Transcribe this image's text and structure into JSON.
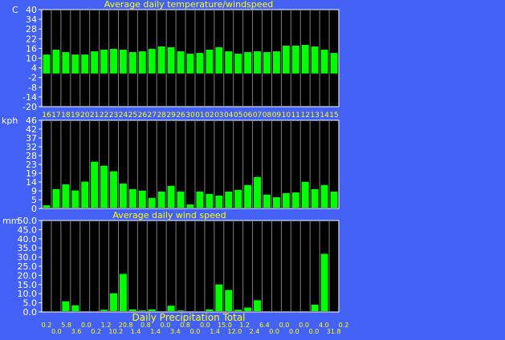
{
  "colors": {
    "background": "#4461f5",
    "plot": "#000000",
    "bar": "#00ff00",
    "grid": "#808080",
    "title": "#ffff00",
    "axis_text": "#ffffff"
  },
  "date_labels": [
    "16",
    "17",
    "18",
    "19",
    "20",
    "21",
    "22",
    "23",
    "24",
    "25",
    "26",
    "27",
    "28",
    "29",
    "26",
    "30",
    "01",
    "02",
    "03",
    "04",
    "05",
    "06",
    "07",
    "08",
    "09",
    "10",
    "11",
    "12",
    "13",
    "14",
    "15"
  ],
  "chart_data": [
    {
      "type": "bar",
      "title": "Average daily temperature/windspeed",
      "unit": "C",
      "ylim": [
        -20,
        40
      ],
      "yticks": [
        "40",
        "34",
        "28",
        "22",
        "16",
        "10",
        "4",
        "-2",
        "-8",
        "-14",
        "-20"
      ],
      "values": [
        12.2,
        15.2,
        13.7,
        12.2,
        12.2,
        14.2,
        15.2,
        15.7,
        15.2,
        13.7,
        14.2,
        15.7,
        17.2,
        16.7,
        14.2,
        12.7,
        13.2,
        15.2,
        16.7,
        14.2,
        12.7,
        13.7,
        14.2,
        13.7,
        14.2,
        17.7,
        17.7,
        18.2,
        17.2,
        15.2,
        13.2
      ]
    },
    {
      "type": "bar",
      "title": "Average daily wind speed",
      "unit": "kph",
      "ylim": [
        0,
        46
      ],
      "yticks": [
        "46",
        "42",
        "37",
        "32",
        "28",
        "23",
        "19",
        "14",
        "9",
        "5",
        "0"
      ],
      "values": [
        1.7,
        10.1,
        12.6,
        9.4,
        14.0,
        24.4,
        22.3,
        19.4,
        13.0,
        10.1,
        9.3,
        5.5,
        8.8,
        11.8,
        8.8,
        2.1,
        8.8,
        7.6,
        6.7,
        8.8,
        9.7,
        12.2,
        16.4,
        7.2,
        5.9,
        8.0,
        8.4,
        13.9,
        10.1,
        12.2,
        8.8
      ]
    },
    {
      "type": "bar",
      "title": "Daily Precipitation Total",
      "unit": "mm",
      "ylim": [
        0,
        50
      ],
      "yticks": [
        "50.0",
        "45.0",
        "40.0",
        "35.0",
        "30.0",
        "25.0",
        "20.0",
        "15.0",
        "10.0",
        "5.0",
        "0.0"
      ],
      "values": [
        0.2,
        0.0,
        5.8,
        3.6,
        0.0,
        0.2,
        1.2,
        10.2,
        20.8,
        1.4,
        0.8,
        1.4,
        0.0,
        3.4,
        0.8,
        0.0,
        0.0,
        1.4,
        15.0,
        12.0,
        1.2,
        2.4,
        6.4,
        0.0,
        0.0,
        0.0,
        0.0,
        0.0,
        4.0,
        31.8,
        0.2
      ],
      "value_labels": [
        "0.2",
        "0.0",
        "5.8",
        "3.6",
        "0.0",
        "0.2",
        "1.2",
        "10.2",
        "20.8",
        "1.4",
        "0.8",
        "1.4",
        "0.0",
        "3.4",
        "0.8",
        "0.0",
        "0.0",
        "1.4",
        "15.0",
        "12.0",
        "1.2",
        "2.4",
        "6.4",
        "0.0",
        "0.0",
        "0.0",
        "0.0",
        "0.0",
        "4.0",
        "31.8",
        "0.2"
      ]
    }
  ]
}
